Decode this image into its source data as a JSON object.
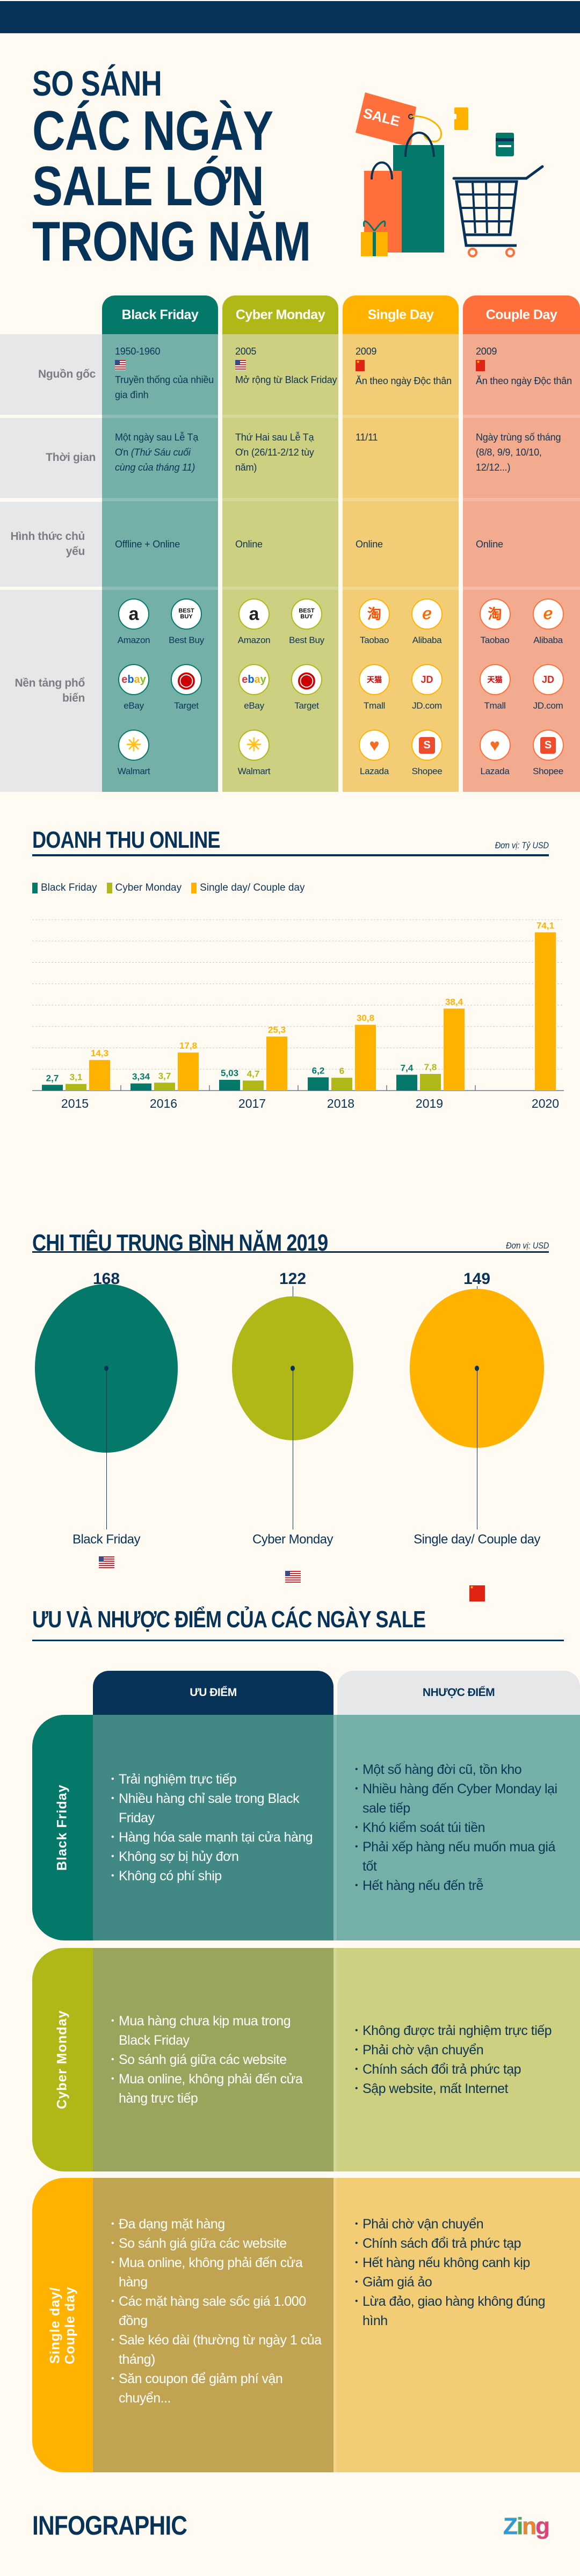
{
  "header": {
    "title_lines": [
      "SO SÁNH",
      "CÁC NGÀY",
      "SALE LỚN",
      "TRONG NĂM"
    ],
    "illustration_tag": "SALE"
  },
  "comparison_table": {
    "columns": [
      {
        "name": "Black Friday",
        "color": "#04796a",
        "cell_color": "#74b0a7"
      },
      {
        "name": "Cyber Monday",
        "color": "#b0b818",
        "cell_color": "#cdd080"
      },
      {
        "name": "Single Day",
        "color": "#ffb300",
        "cell_color": "#f2cd75"
      },
      {
        "name": "Couple Day",
        "color": "#ff6f3c",
        "cell_color": "#f3ab8f"
      }
    ],
    "row_labels": [
      "Nguồn gốc",
      "Thời gian",
      "Hình thức chủ yếu",
      "Nền tảng phổ biến"
    ],
    "origin": [
      {
        "year": "1950-1960",
        "flag": "us-flag",
        "text": "Truyền thống của nhiều gia đình"
      },
      {
        "year": "2005",
        "flag": "us-flag",
        "text": "Mở rộng từ Black Friday"
      },
      {
        "year": "2009",
        "flag": "cn-flag",
        "text": "Ăn theo ngày Độc thân"
      },
      {
        "year": "2009",
        "flag": "cn-flag",
        "text": "Ăn theo ngày Độc thân"
      }
    ],
    "time": [
      {
        "text": "Một ngày sau Lễ Tạ Ơn ",
        "italic": "(Thứ Sáu cuối cùng của tháng 11)"
      },
      {
        "text": "Thứ Hai sau Lễ Tạ Ơn (26/11-2/12 tùy năm)",
        "italic": ""
      },
      {
        "text": "11/11",
        "italic": ""
      },
      {
        "text": "Ngày trùng số tháng (8/8, 9/9, 10/10, 12/12...)",
        "italic": ""
      }
    ],
    "channel": [
      "Offline + Online",
      "Online",
      "Online",
      "Online"
    ],
    "platforms": [
      [
        "Amazon",
        "Best Buy",
        "eBay",
        "Target",
        "Walmart"
      ],
      [
        "Amazon",
        "Best Buy",
        "eBay",
        "Target",
        "Walmart"
      ],
      [
        "Taobao",
        "Alibaba",
        "Tmall",
        "JD.com",
        "Lazada",
        "Shopee"
      ],
      [
        "Taobao",
        "Alibaba",
        "Tmall",
        "JD.com",
        "Lazada",
        "Shopee"
      ]
    ]
  },
  "revenue_section": {
    "title": "DOANH THU ONLINE",
    "unit": "Đơn vị: Tỷ USD"
  },
  "chart_data": {
    "type": "bar",
    "title": "DOANH THU ONLINE",
    "ylabel": "Tỷ USD",
    "xlabel": "",
    "categories": [
      "2015",
      "2016",
      "2017",
      "2018",
      "2019",
      "2020"
    ],
    "series": [
      {
        "name": "Black Friday",
        "color": "#04796a",
        "values": [
          2.7,
          3.34,
          5.03,
          6.2,
          7.4,
          null
        ],
        "labels": [
          "2,7",
          "3,34",
          "5,03",
          "6,2",
          "7,4",
          null
        ]
      },
      {
        "name": "Cyber Monday",
        "color": "#b0b818",
        "values": [
          3.1,
          3.7,
          4.7,
          6,
          7.8,
          null
        ],
        "labels": [
          "3,1",
          "3,7",
          "4,7",
          "6",
          "7,8",
          null
        ]
      },
      {
        "name": "Single day/ Couple day",
        "color": "#ffb300",
        "values": [
          14.3,
          17.8,
          25.3,
          30.8,
          38.4,
          74.1
        ],
        "labels": [
          "14,3",
          "17,8",
          "25,3",
          "30,8",
          "38,4",
          "74,1"
        ]
      }
    ],
    "ylim": [
      0,
      80
    ],
    "grid": true,
    "legend": "top-left"
  },
  "spending_section": {
    "title": "CHI TIÊU TRUNG BÌNH NĂM 2019",
    "unit": "Đơn vị: USD",
    "items": [
      {
        "label": "Black Friday",
        "value": 168,
        "value_text": "168",
        "color": "#04796a",
        "flag": "us-flag"
      },
      {
        "label": "Cyber Monday",
        "value": 122,
        "value_text": "122",
        "color": "#b0b818",
        "flag": "us-flag"
      },
      {
        "label": "Single day/ Couple day",
        "value": 149,
        "value_text": "149",
        "color": "#ffb300",
        "flag": "cn-flag"
      }
    ]
  },
  "pros_cons": {
    "title": "ƯU VÀ NHƯỢC ĐIỂM CỦA CÁC NGÀY SALE",
    "pros_header": "ƯU ĐIỂM",
    "cons_header": "NHƯỢC ĐIỂM",
    "groups": [
      {
        "name": "Black Friday",
        "side_color": "#04796a",
        "pros_color": "#428884",
        "cons_color": "#74b0a7",
        "pros": [
          "Trải nghiệm trực tiếp",
          "Nhiều hàng chỉ sale trong Black Friday",
          "Hàng hóa sale mạnh tại cửa hàng",
          "Không sợ bị hủy đơn",
          "Không có phí ship"
        ],
        "cons": [
          "Một số hàng đời cũ, tồn kho",
          "Nhiều hàng đến Cyber Monday lại sale tiếp",
          "Khó kiểm soát túi tiền",
          "Phải xếp hàng nếu muốn mua giá tốt",
          "Hết hàng nếu đến trễ"
        ]
      },
      {
        "name": "Cyber Monday",
        "side_color": "#b0b818",
        "pros_color": "#99a55c",
        "cons_color": "#cdd080",
        "pros": [
          "Mua hàng chưa kịp mua trong Black Friday",
          "So sánh giá giữa các website",
          "Mua online, không phải đến cửa hàng trực tiếp"
        ],
        "cons": [
          "Không được trải nghiệm trực tiếp",
          "Phải chờ vận chuyển",
          "Chính sách đổi trả phức tạp",
          "Sập website, mất Internet"
        ]
      },
      {
        "name": "Single day/ Couple day",
        "side_color": "#ffb300",
        "pros_color": "#c1a452",
        "cons_color": "#f2cd75",
        "pros": [
          "Đa dạng mặt hàng",
          "So sánh giá giữa các website",
          "Mua online, không phải đến cửa hàng",
          "Các mặt hàng sale sốc giá 1.000 đồng",
          "Sale kéo dài (thường từ ngày 1 của tháng)",
          "Săn coupon để giảm phí vận chuyển..."
        ],
        "cons": [
          "Phải chờ vận chuyển",
          "Chính sách đổi trả phức tạp",
          "Hết hàng nếu không canh kịp",
          "Giảm giá ảo",
          "Lừa đảo, giao hàng không đúng hình"
        ]
      }
    ]
  },
  "footer": {
    "left_logo": "INFOGRAPHIC",
    "right_logo": "Zing"
  }
}
